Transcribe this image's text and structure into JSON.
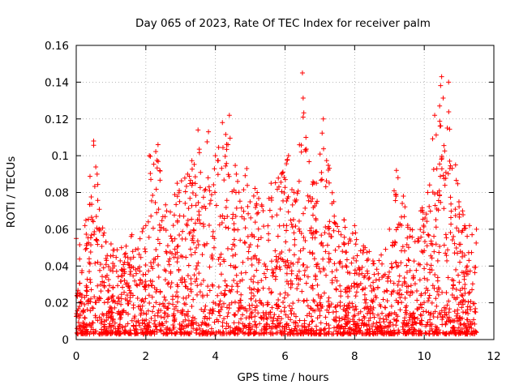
{
  "chart_data": {
    "type": "scatter",
    "title": "Day 065 of 2023, Rate Of TEC Index for receiver palm",
    "xlabel": "GPS time / hours",
    "ylabel": "ROTI / TECUs",
    "xlim": [
      0,
      12
    ],
    "ylim": [
      0,
      0.16
    ],
    "x_ticks": [
      0,
      2,
      4,
      6,
      8,
      10,
      12
    ],
    "x_tick_labels": [
      "0",
      "2",
      "4",
      "6",
      "8",
      "10",
      "12"
    ],
    "y_ticks": [
      0,
      0.02,
      0.04,
      0.06,
      0.08,
      0.1,
      0.12,
      0.14,
      0.16
    ],
    "y_tick_labels": [
      "0",
      "0.02",
      "0.04",
      "0.06",
      "0.08",
      "0.1",
      "0.12",
      "0.14",
      "0.16"
    ],
    "grid": true,
    "marker": "+",
    "color": "#ff0000",
    "series": [
      {
        "name": "ROTI",
        "data_range_hours": [
          0,
          11.5
        ],
        "upper_envelope": [
          [
            0.0,
            0.055
          ],
          [
            0.25,
            0.062
          ],
          [
            0.5,
            0.108
          ],
          [
            0.6,
            0.09
          ],
          [
            0.8,
            0.058
          ],
          [
            1.0,
            0.052
          ],
          [
            1.3,
            0.05
          ],
          [
            1.6,
            0.057
          ],
          [
            2.0,
            0.062
          ],
          [
            2.1,
            0.1
          ],
          [
            2.35,
            0.106
          ],
          [
            2.6,
            0.07
          ],
          [
            2.9,
            0.085
          ],
          [
            3.2,
            0.09
          ],
          [
            3.5,
            0.114
          ],
          [
            3.8,
            0.113
          ],
          [
            4.0,
            0.1
          ],
          [
            4.2,
            0.118
          ],
          [
            4.4,
            0.122
          ],
          [
            4.6,
            0.09
          ],
          [
            4.9,
            0.093
          ],
          [
            5.2,
            0.08
          ],
          [
            5.6,
            0.085
          ],
          [
            5.9,
            0.09
          ],
          [
            6.1,
            0.1
          ],
          [
            6.3,
            0.075
          ],
          [
            6.5,
            0.145
          ],
          [
            6.6,
            0.11
          ],
          [
            6.9,
            0.085
          ],
          [
            7.1,
            0.12
          ],
          [
            7.4,
            0.075
          ],
          [
            7.7,
            0.065
          ],
          [
            8.0,
            0.062
          ],
          [
            8.3,
            0.05
          ],
          [
            8.7,
            0.043
          ],
          [
            9.0,
            0.06
          ],
          [
            9.2,
            0.092
          ],
          [
            9.4,
            0.078
          ],
          [
            9.6,
            0.06
          ],
          [
            9.9,
            0.07
          ],
          [
            10.1,
            0.08
          ],
          [
            10.3,
            0.122
          ],
          [
            10.5,
            0.143
          ],
          [
            10.7,
            0.14
          ],
          [
            10.9,
            0.095
          ],
          [
            11.1,
            0.07
          ],
          [
            11.3,
            0.062
          ],
          [
            11.5,
            0.06
          ]
        ],
        "lower_bound": 0.003
      }
    ]
  }
}
